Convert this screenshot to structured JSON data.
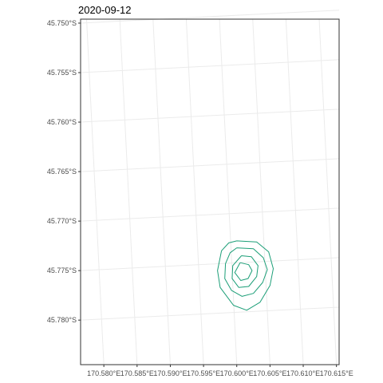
{
  "chart_data": {
    "type": "contour",
    "title": "2020-09-12",
    "xlabel": "",
    "ylabel": "",
    "x_ticks": [
      {
        "value": 170.58,
        "label": "170.580°E"
      },
      {
        "value": 170.585,
        "label": "170.585°E"
      },
      {
        "value": 170.59,
        "label": "170.590°E"
      },
      {
        "value": 170.595,
        "label": "170.595°E"
      },
      {
        "value": 170.6,
        "label": "170.600°E"
      },
      {
        "value": 170.605,
        "label": "170.605°E"
      },
      {
        "value": 170.61,
        "label": "170.610°E"
      },
      {
        "value": 170.615,
        "label": "170.615°E"
      }
    ],
    "y_ticks": [
      {
        "value": -45.75,
        "label": "45.750°S"
      },
      {
        "value": -45.755,
        "label": "45.755°S"
      },
      {
        "value": -45.76,
        "label": "45.760°S"
      },
      {
        "value": -45.765,
        "label": "45.765°S"
      },
      {
        "value": -45.77,
        "label": "45.770°S"
      },
      {
        "value": -45.775,
        "label": "45.775°S"
      },
      {
        "value": -45.78,
        "label": "45.780°S"
      }
    ],
    "xlim": [
      170.5765,
      170.6154
    ],
    "ylim": [
      -45.7845,
      -45.7496
    ],
    "grid": true,
    "line_color": "#1b9e77",
    "contours": [
      {
        "points": [
          [
            170.6,
            -45.772
          ],
          [
            170.603,
            -45.7721
          ],
          [
            170.6048,
            -45.7731
          ],
          [
            170.6055,
            -45.7748
          ],
          [
            170.605,
            -45.7765
          ],
          [
            170.6035,
            -45.7782
          ],
          [
            170.6015,
            -45.779
          ],
          [
            170.5995,
            -45.7785
          ],
          [
            170.5975,
            -45.7767
          ],
          [
            170.5971,
            -45.775
          ],
          [
            170.5977,
            -45.773
          ],
          [
            170.5988,
            -45.7722
          ],
          [
            170.6,
            -45.772
          ]
        ]
      },
      {
        "points": [
          [
            170.6,
            -45.7727
          ],
          [
            170.6025,
            -45.7728
          ],
          [
            170.604,
            -45.7737
          ],
          [
            170.6046,
            -45.7749
          ],
          [
            170.6039,
            -45.7762
          ],
          [
            170.6025,
            -45.7773
          ],
          [
            170.6008,
            -45.7776
          ],
          [
            170.5992,
            -45.777
          ],
          [
            170.5982,
            -45.7758
          ],
          [
            170.5983,
            -45.7743
          ],
          [
            170.599,
            -45.7732
          ],
          [
            170.6,
            -45.7727
          ]
        ]
      },
      {
        "points": [
          [
            170.6007,
            -45.7735
          ],
          [
            170.6022,
            -45.7736
          ],
          [
            170.6032,
            -45.7745
          ],
          [
            170.603,
            -45.7756
          ],
          [
            170.6018,
            -45.7766
          ],
          [
            170.6003,
            -45.7767
          ],
          [
            170.5993,
            -45.7758
          ],
          [
            170.5994,
            -45.7745
          ],
          [
            170.6007,
            -45.7735
          ]
        ]
      },
      {
        "points": [
          [
            170.6005,
            -45.7742
          ],
          [
            170.6018,
            -45.7744
          ],
          [
            170.6023,
            -45.775
          ],
          [
            170.6017,
            -45.7758
          ],
          [
            170.6006,
            -45.776
          ],
          [
            170.5997,
            -45.7752
          ],
          [
            170.6005,
            -45.7742
          ]
        ]
      }
    ]
  }
}
